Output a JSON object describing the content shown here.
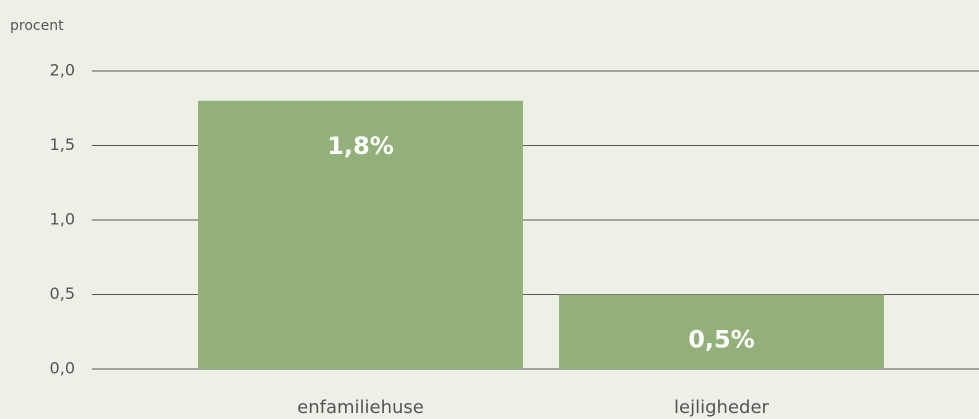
{
  "chart_data": {
    "type": "bar",
    "y_label": "procent",
    "categories": [
      "enfamiliehuse",
      "lejligheder"
    ],
    "values": [
      1.8,
      0.5
    ],
    "value_labels": [
      "1,8%",
      "0,5%"
    ],
    "color": "#93b07a",
    "ylim": [
      0,
      2
    ],
    "yticks": [
      {
        "value": 0,
        "label": "0,0"
      },
      {
        "value": 0.5,
        "label": "0,5"
      },
      {
        "value": 1,
        "label": "1,0"
      },
      {
        "value": 1.5,
        "label": "1,5"
      },
      {
        "value": 2,
        "label": "2,0"
      }
    ],
    "grid": true
  }
}
